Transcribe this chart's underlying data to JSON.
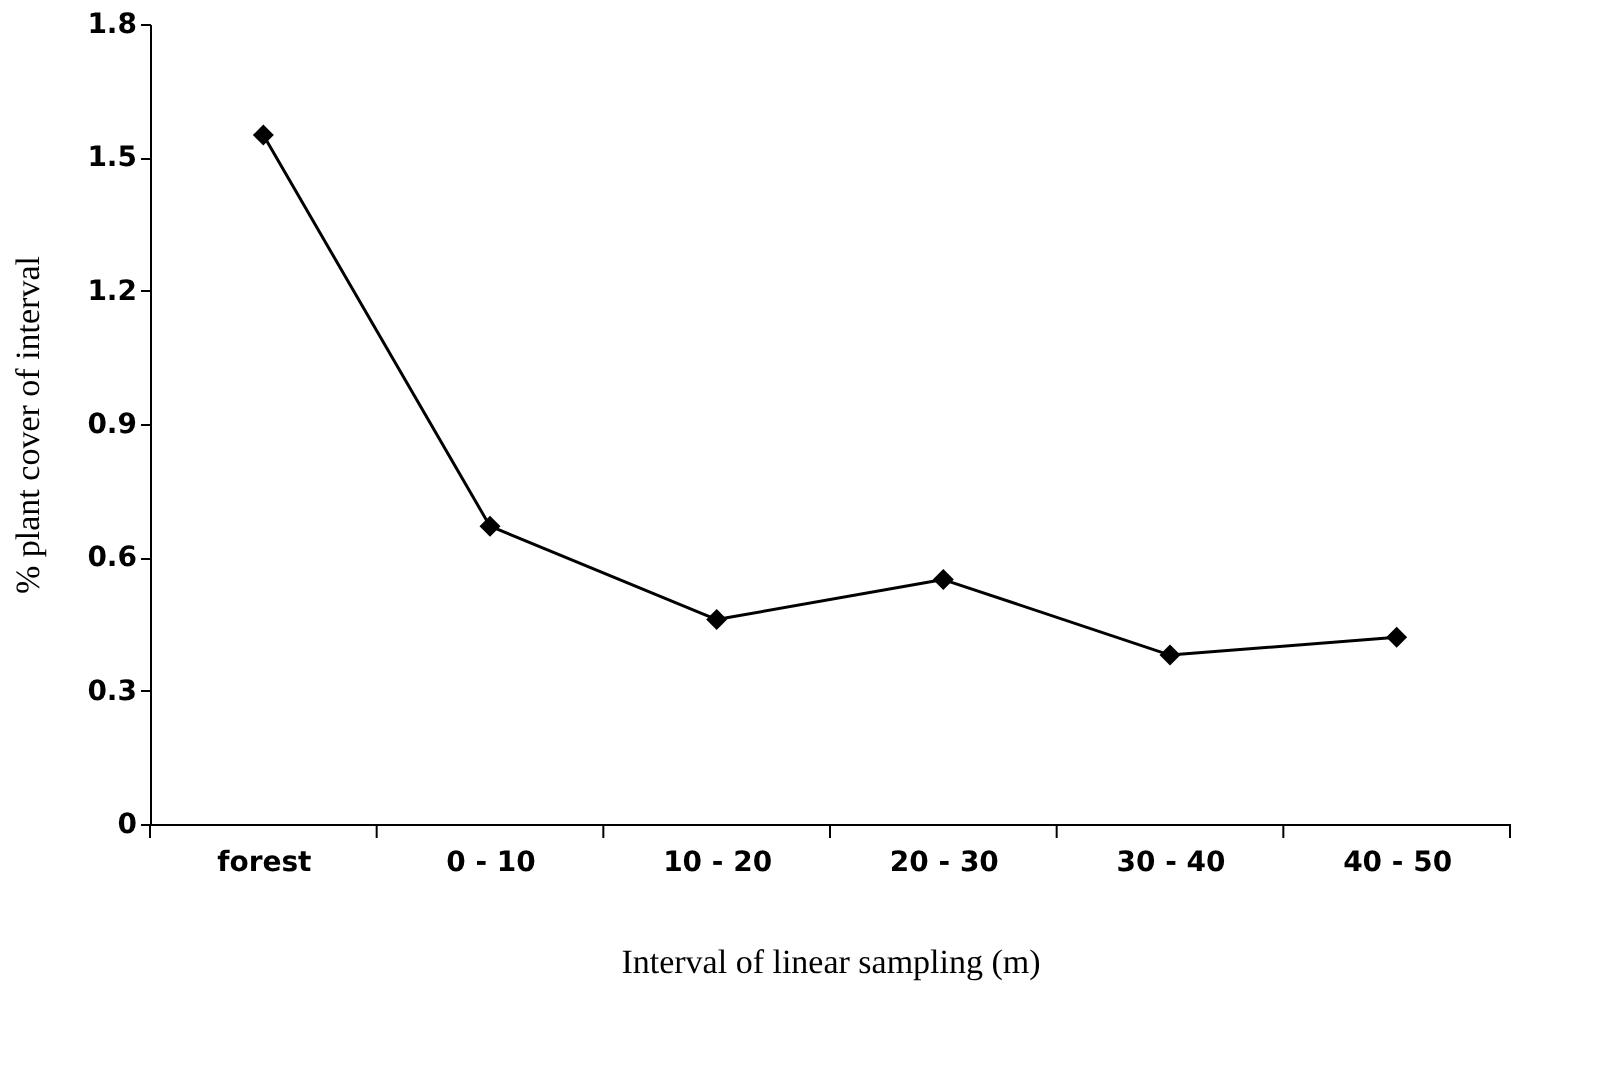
{
  "chart_data": {
    "type": "line",
    "xlabel": "Interval of linear sampling (m)",
    "ylabel": "% plant cover of interval",
    "categories": [
      "forest",
      "0 - 10",
      "10 - 20",
      "20 - 30",
      "30 - 40",
      "40 - 50"
    ],
    "series": [
      {
        "color": "#000000",
        "values": [
          1.55,
          0.67,
          0.46,
          0.55,
          0.38,
          0.42
        ]
      }
    ],
    "ylim": [
      0,
      1.8
    ],
    "yticks": [
      0,
      0.3,
      0.6,
      0.9,
      1.2,
      1.5,
      1.8
    ],
    "grid": false,
    "legend": false,
    "marker": "diamond",
    "line_style": "solid"
  }
}
